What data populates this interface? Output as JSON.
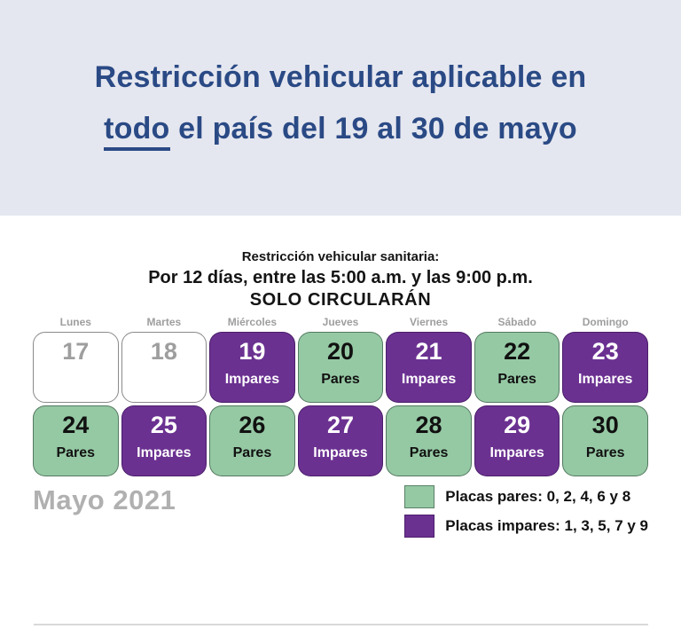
{
  "header": {
    "title_line1": "Restricción vehicular aplicable en",
    "title_line2_underlined": "todo",
    "title_line2_rest": " el país del 19 al 30 de mayo"
  },
  "subtitle": {
    "line1": "Restricción vehicular sanitaria:",
    "line2": "Por 12 días, entre las 5:00 a.m. y las 9:00 p.m.",
    "line3": "SOLO CIRCULARÁN"
  },
  "calendar": {
    "month_label": "Mayo 2021",
    "day_headers": [
      "Lunes",
      "Martes",
      "Miércoles",
      "Jueves",
      "Viernes",
      "Sábado",
      "Domingo"
    ],
    "weeks": [
      [
        {
          "day": "17",
          "label": "",
          "type": "none"
        },
        {
          "day": "18",
          "label": "",
          "type": "none"
        },
        {
          "day": "19",
          "label": "Impares",
          "type": "impares"
        },
        {
          "day": "20",
          "label": "Pares",
          "type": "pares"
        },
        {
          "day": "21",
          "label": "Impares",
          "type": "impares"
        },
        {
          "day": "22",
          "label": "Pares",
          "type": "pares"
        },
        {
          "day": "23",
          "label": "Impares",
          "type": "impares"
        }
      ],
      [
        {
          "day": "24",
          "label": "Pares",
          "type": "pares"
        },
        {
          "day": "25",
          "label": "Impares",
          "type": "impares"
        },
        {
          "day": "26",
          "label": "Pares",
          "type": "pares"
        },
        {
          "day": "27",
          "label": "Impares",
          "type": "impares"
        },
        {
          "day": "28",
          "label": "Pares",
          "type": "pares"
        },
        {
          "day": "29",
          "label": "Impares",
          "type": "impares"
        },
        {
          "day": "30",
          "label": "Pares",
          "type": "pares"
        }
      ]
    ]
  },
  "legend": {
    "pares_label": "Placas pares: 0, 2, 4, 6 y 8",
    "impares_label": "Placas impares: 1, 3, 5, 7 y 9"
  },
  "colors": {
    "header_bg": "#e5e7f0",
    "title_blue": "#2a4a85",
    "pares_green": "#95c9a4",
    "impares_purple": "#6b3191",
    "muted_gray": "#9e9e9e",
    "month_gray": "#b0b0b0",
    "divider_gray": "#d9d9d9"
  }
}
